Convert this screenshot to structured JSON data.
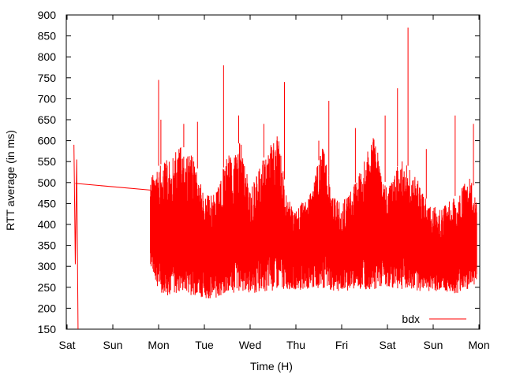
{
  "chart_data": {
    "type": "line",
    "title": "",
    "xlabel": "Time (H)",
    "ylabel": "RTT average (in ms)",
    "ylim": [
      150,
      900
    ],
    "yticks": [
      150,
      200,
      250,
      300,
      350,
      400,
      450,
      500,
      550,
      600,
      650,
      700,
      750,
      800,
      850,
      900
    ],
    "xticks": [
      "Sat",
      "Sun",
      "Mon",
      "Tue",
      "Wed",
      "Thu",
      "Fri",
      "Sat",
      "Sun",
      "Mon"
    ],
    "grid": false,
    "legend_position": "bottom-right",
    "series": [
      {
        "name": "bdx",
        "color": "#ff0000",
        "segments": [
          {
            "x": [
              0.15,
              0.18,
              0.21,
              0.24
            ],
            "y": [
              590,
              305,
              555,
              150
            ]
          },
          {
            "x": [
              0.18,
              1.82
            ],
            "y": [
              498,
              482
            ]
          }
        ],
        "envelope": [
          {
            "x": 1.82,
            "low": 300,
            "high": 515
          },
          {
            "x": 2.0,
            "low": 240,
            "high": 540
          },
          {
            "x": 2.2,
            "low": 230,
            "high": 555
          },
          {
            "x": 2.5,
            "low": 235,
            "high": 590
          },
          {
            "x": 2.8,
            "low": 230,
            "high": 555
          },
          {
            "x": 3.0,
            "low": 225,
            "high": 470
          },
          {
            "x": 3.2,
            "low": 220,
            "high": 470
          },
          {
            "x": 3.5,
            "low": 230,
            "high": 560
          },
          {
            "x": 3.8,
            "low": 240,
            "high": 600
          },
          {
            "x": 4.0,
            "low": 235,
            "high": 480
          },
          {
            "x": 4.3,
            "low": 240,
            "high": 560
          },
          {
            "x": 4.6,
            "low": 240,
            "high": 620
          },
          {
            "x": 4.8,
            "low": 245,
            "high": 470
          },
          {
            "x": 5.0,
            "low": 245,
            "high": 430
          },
          {
            "x": 5.3,
            "low": 240,
            "high": 480
          },
          {
            "x": 5.6,
            "low": 245,
            "high": 590
          },
          {
            "x": 5.8,
            "low": 240,
            "high": 470
          },
          {
            "x": 6.0,
            "low": 240,
            "high": 450
          },
          {
            "x": 6.3,
            "low": 245,
            "high": 500
          },
          {
            "x": 6.7,
            "low": 245,
            "high": 610
          },
          {
            "x": 7.0,
            "low": 250,
            "high": 480
          },
          {
            "x": 7.3,
            "low": 245,
            "high": 560
          },
          {
            "x": 7.6,
            "low": 240,
            "high": 520
          },
          {
            "x": 7.9,
            "low": 240,
            "high": 450
          },
          {
            "x": 8.2,
            "low": 240,
            "high": 440
          },
          {
            "x": 8.5,
            "low": 235,
            "high": 470
          },
          {
            "x": 8.8,
            "low": 245,
            "high": 520
          },
          {
            "x": 8.95,
            "low": 260,
            "high": 470
          }
        ],
        "spikes": [
          {
            "x": 2.0,
            "y": 745
          },
          {
            "x": 2.05,
            "y": 650
          },
          {
            "x": 2.55,
            "y": 640
          },
          {
            "x": 2.85,
            "y": 645
          },
          {
            "x": 3.42,
            "y": 780
          },
          {
            "x": 3.75,
            "y": 660
          },
          {
            "x": 4.3,
            "y": 640
          },
          {
            "x": 4.75,
            "y": 740
          },
          {
            "x": 5.5,
            "y": 600
          },
          {
            "x": 5.72,
            "y": 695
          },
          {
            "x": 6.3,
            "y": 630
          },
          {
            "x": 6.95,
            "y": 660
          },
          {
            "x": 7.22,
            "y": 725
          },
          {
            "x": 7.45,
            "y": 870
          },
          {
            "x": 7.85,
            "y": 580
          },
          {
            "x": 8.48,
            "y": 660
          },
          {
            "x": 8.88,
            "y": 640
          }
        ]
      }
    ]
  }
}
